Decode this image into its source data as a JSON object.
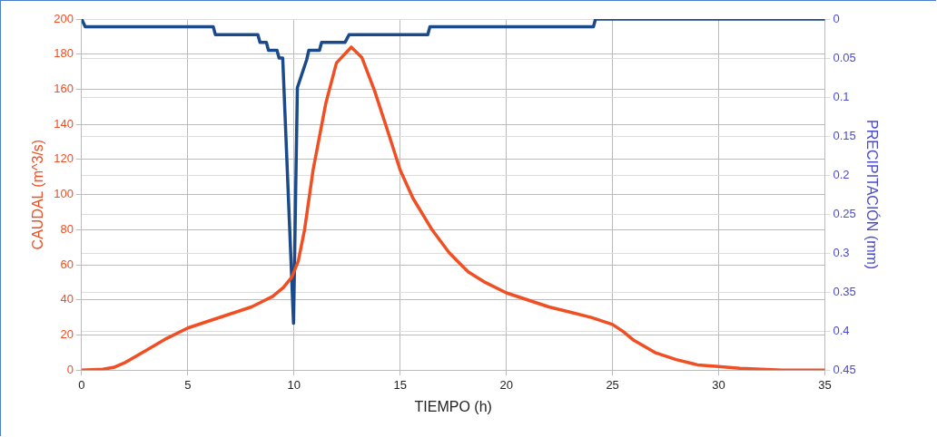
{
  "chart_data": {
    "type": "line",
    "xlabel": "TIEMPO (h)",
    "ylabel": "CAUDAL (m^3/s)",
    "y2label": "PRECIPITACIÓN (mm)",
    "xlim": [
      0,
      35
    ],
    "xticks": [
      0,
      5,
      10,
      15,
      20,
      25,
      30,
      35
    ],
    "ylim": [
      0,
      200
    ],
    "yticks": [
      0,
      20,
      40,
      60,
      80,
      100,
      120,
      140,
      160,
      180,
      200
    ],
    "y2lim": [
      0.45,
      0
    ],
    "y2ticks": [
      0,
      0.05,
      0.1,
      0.15,
      0.2,
      0.25,
      0.3,
      0.35,
      0.4,
      0.45
    ],
    "grid": true,
    "legend": false,
    "marker": "none",
    "line_style": "solid",
    "series": [
      {
        "color": "#f04e23",
        "x": [
          0,
          1,
          1.5,
          2,
          3,
          4,
          5,
          6,
          7,
          8,
          8.5,
          9,
          9.5,
          9.9,
          10.2,
          10.5,
          10.9,
          11.5,
          12,
          12.7,
          13.2,
          13.8,
          14.5,
          15,
          15.6,
          16.5,
          17.3,
          18.2,
          19,
          20,
          21,
          22,
          23,
          24,
          25,
          25.5,
          26,
          27,
          28,
          29,
          30,
          31,
          32,
          33,
          35
        ],
        "values": [
          0,
          0.5,
          1.5,
          4,
          11,
          18,
          24,
          28,
          32,
          36,
          39,
          42,
          47,
          53,
          62,
          80,
          114,
          152,
          175,
          184,
          178,
          159,
          133,
          114,
          98,
          80,
          67,
          56,
          50,
          44,
          40,
          36,
          33,
          30,
          26,
          22,
          17,
          10,
          6,
          3,
          2,
          1,
          0.5,
          0,
          0
        ]
      },
      {
        "color": "#1a4a8a",
        "axis": "y2",
        "x": [
          0,
          0.17,
          6.2,
          6.3,
          8.3,
          8.4,
          8.7,
          8.8,
          9.2,
          9.3,
          9.47,
          9.98,
          10.16,
          10.6,
          10.7,
          11.2,
          11.3,
          12.4,
          12.6,
          16.3,
          16.4,
          24.1,
          24.2,
          35
        ],
        "values": [
          0,
          0.01,
          0.01,
          0.02,
          0.02,
          0.03,
          0.03,
          0.04,
          0.04,
          0.05,
          0.05,
          0.39,
          0.088,
          0.052,
          0.04,
          0.04,
          0.03,
          0.03,
          0.02,
          0.02,
          0.01,
          0.01,
          0,
          0
        ]
      }
    ]
  }
}
